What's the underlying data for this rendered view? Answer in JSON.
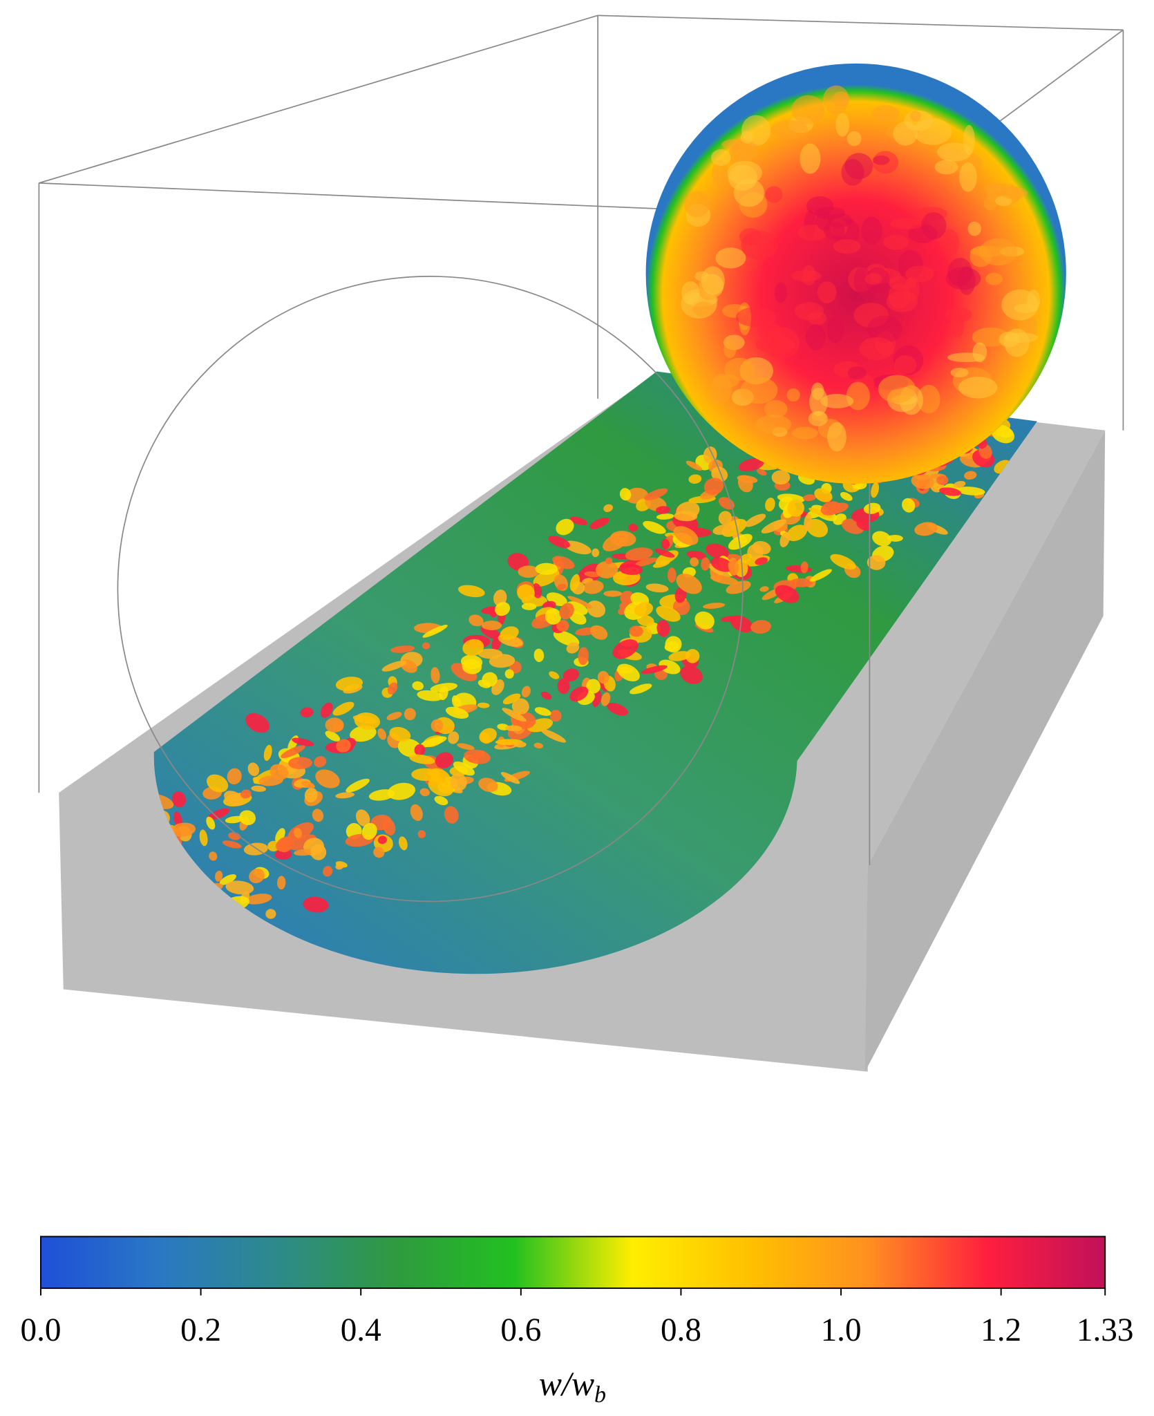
{
  "chart_data": {
    "type": "colorbar",
    "colorbar_label": "w/w",
    "colorbar_label_subscript": "b",
    "clim": [
      0,
      1.33
    ],
    "ticks": [
      {
        "value": 0,
        "label": "0.0"
      },
      0.2,
      0.4,
      0.6,
      0.8,
      {
        "value": 1,
        "label": "1.0"
      },
      1.2,
      1.33
    ],
    "colormap": [
      "#1f4fd8",
      "#2a78c4",
      "#2d8a8a",
      "#2f9a40",
      "#22c020",
      "#ffee00",
      "#ffc000",
      "#ff9020",
      "#ff1f3f",
      "#c0105a"
    ]
  }
}
